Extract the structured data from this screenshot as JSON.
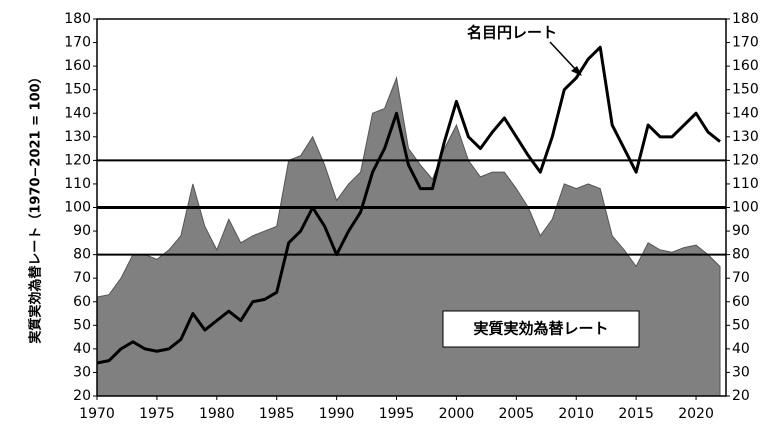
{
  "chart_data": {
    "type": "area_line",
    "ylabel": "実質実効為替レート（1970−2021 = 100）",
    "x": [
      1970,
      1971,
      1972,
      1973,
      1974,
      1975,
      1976,
      1977,
      1978,
      1979,
      1980,
      1981,
      1982,
      1983,
      1984,
      1985,
      1986,
      1987,
      1988,
      1989,
      1990,
      1991,
      1992,
      1993,
      1994,
      1995,
      1996,
      1997,
      1998,
      1999,
      2000,
      2001,
      2002,
      2003,
      2004,
      2005,
      2006,
      2007,
      2008,
      2009,
      2010,
      2011,
      2012,
      2013,
      2014,
      2015,
      2016,
      2017,
      2018,
      2019,
      2020,
      2021,
      2022
    ],
    "series": [
      {
        "name": "実質実効為替レート",
        "color": "#808080",
        "kind": "area",
        "values": [
          62,
          63,
          70,
          80,
          80,
          78,
          82,
          88,
          110,
          92,
          82,
          95,
          85,
          88,
          90,
          92,
          120,
          122,
          130,
          118,
          103,
          110,
          115,
          140,
          142,
          155,
          125,
          118,
          112,
          125,
          135,
          120,
          113,
          115,
          115,
          108,
          100,
          88,
          95,
          110,
          108,
          110,
          108,
          88,
          82,
          75,
          85,
          82,
          81,
          83,
          84,
          80,
          75
        ]
      },
      {
        "name": "名目円レート",
        "color": "#000000",
        "kind": "line",
        "values": [
          34,
          35,
          40,
          43,
          40,
          39,
          40,
          44,
          55,
          48,
          52,
          56,
          52,
          60,
          61,
          64,
          85,
          90,
          100,
          92,
          80,
          90,
          98,
          115,
          125,
          140,
          118,
          108,
          108,
          128,
          145,
          130,
          125,
          132,
          138,
          130,
          122,
          115,
          130,
          150,
          155,
          163,
          168,
          135,
          125,
          115,
          135,
          130,
          130,
          135,
          140,
          132,
          128
        ]
      }
    ],
    "xlim": [
      1970,
      2022.5
    ],
    "xticks": [
      1970,
      1975,
      1980,
      1985,
      1990,
      1995,
      2000,
      2005,
      2010,
      2015,
      2020
    ],
    "ylim": [
      20,
      180
    ],
    "yticks": [
      20,
      30,
      40,
      50,
      60,
      70,
      80,
      90,
      100,
      110,
      120,
      130,
      140,
      150,
      160,
      170,
      180
    ],
    "y2lim": [
      20,
      180
    ],
    "y2ticks": [
      20,
      30,
      40,
      50,
      60,
      70,
      80,
      90,
      100,
      110,
      120,
      130,
      140,
      150,
      160,
      170,
      180
    ],
    "reference_lines": [
      80,
      100,
      120
    ]
  }
}
